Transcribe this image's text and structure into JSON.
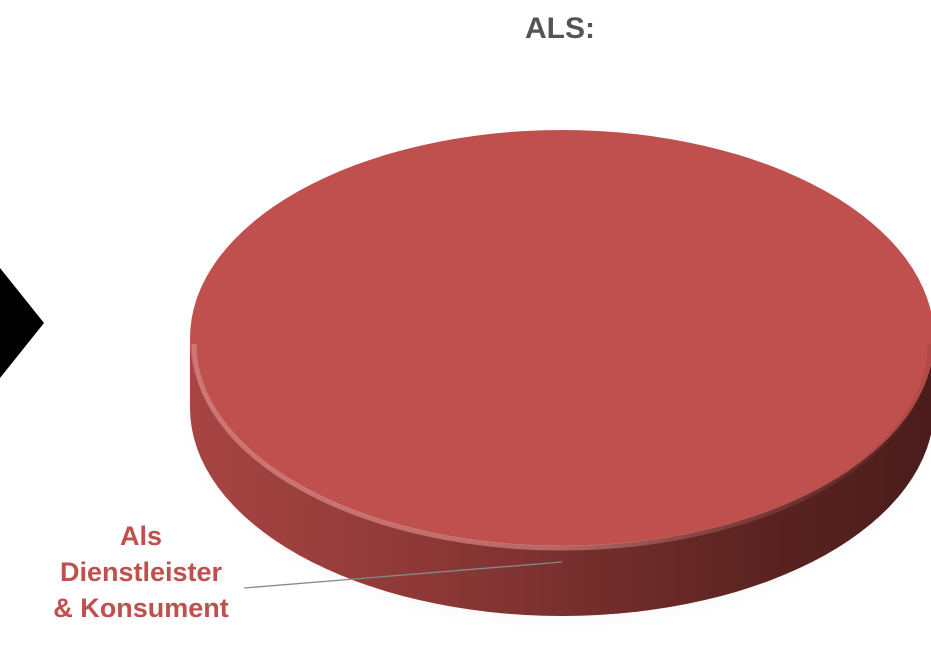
{
  "chart_data": {
    "type": "pie",
    "title": "ALS:",
    "categories": [
      "Als Dienstleister & Konsument"
    ],
    "values": [
      100
    ],
    "colors": [
      "#c0504d"
    ],
    "three_d": true
  },
  "labels": {
    "line1": "Als",
    "line2": "Dienstleister",
    "line3": "& Konsument"
  }
}
